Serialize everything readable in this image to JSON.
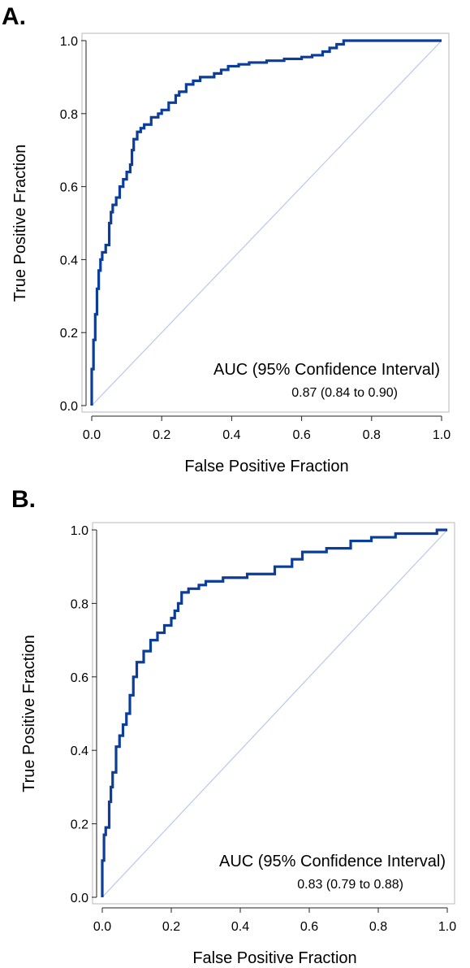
{
  "chart_data": [
    {
      "type": "line",
      "panel_label": "A.",
      "xlabel": "False Positive Fraction",
      "ylabel": "True Positive Fraction",
      "xlim": [
        0,
        1
      ],
      "ylim": [
        0,
        1
      ],
      "x_ticks": [
        "0.0",
        "0.2",
        "0.4",
        "0.6",
        "0.8",
        "1.0"
      ],
      "y_ticks": [
        "0.0",
        "0.2",
        "0.4",
        "0.6",
        "0.8",
        "1.0"
      ],
      "annotation": {
        "title": "AUC (95% Confidence Interval)",
        "value": "0.87 (0.84 to 0.90)"
      },
      "grid": false,
      "series": [
        {
          "color": "#0b3d9a",
          "x": [
            0.0,
            0.0,
            0.005,
            0.005,
            0.01,
            0.01,
            0.015,
            0.015,
            0.02,
            0.02,
            0.025,
            0.025,
            0.03,
            0.03,
            0.04,
            0.04,
            0.05,
            0.05,
            0.055,
            0.055,
            0.06,
            0.06,
            0.07,
            0.07,
            0.08,
            0.08,
            0.09,
            0.09,
            0.1,
            0.1,
            0.11,
            0.11,
            0.115,
            0.115,
            0.12,
            0.12,
            0.13,
            0.13,
            0.14,
            0.14,
            0.15,
            0.15,
            0.17,
            0.17,
            0.19,
            0.19,
            0.2,
            0.2,
            0.22,
            0.22,
            0.24,
            0.24,
            0.25,
            0.25,
            0.27,
            0.27,
            0.29,
            0.29,
            0.31,
            0.31,
            0.35,
            0.35,
            0.37,
            0.37,
            0.39,
            0.39,
            0.42,
            0.42,
            0.45,
            0.45,
            0.5,
            0.5,
            0.55,
            0.55,
            0.6,
            0.6,
            0.63,
            0.63,
            0.66,
            0.66,
            0.68,
            0.68,
            0.7,
            0.7,
            0.72,
            0.72,
            0.75,
            0.75,
            0.8,
            0.8,
            1.0
          ],
          "y": [
            0.0,
            0.1,
            0.1,
            0.18,
            0.18,
            0.25,
            0.25,
            0.32,
            0.32,
            0.37,
            0.37,
            0.4,
            0.4,
            0.42,
            0.42,
            0.44,
            0.44,
            0.5,
            0.5,
            0.53,
            0.53,
            0.55,
            0.55,
            0.57,
            0.57,
            0.6,
            0.6,
            0.62,
            0.62,
            0.64,
            0.64,
            0.66,
            0.66,
            0.7,
            0.7,
            0.73,
            0.73,
            0.75,
            0.75,
            0.76,
            0.76,
            0.77,
            0.77,
            0.79,
            0.79,
            0.8,
            0.8,
            0.81,
            0.81,
            0.83,
            0.83,
            0.85,
            0.85,
            0.86,
            0.86,
            0.88,
            0.88,
            0.89,
            0.89,
            0.9,
            0.9,
            0.91,
            0.91,
            0.92,
            0.92,
            0.93,
            0.93,
            0.935,
            0.935,
            0.94,
            0.94,
            0.945,
            0.945,
            0.95,
            0.95,
            0.955,
            0.955,
            0.96,
            0.96,
            0.97,
            0.97,
            0.98,
            0.98,
            0.99,
            0.99,
            1.0,
            1.0,
            1.0,
            1.0,
            1.0,
            1.0
          ]
        }
      ]
    },
    {
      "type": "line",
      "panel_label": "B.",
      "xlabel": "False Positive Fraction",
      "ylabel": "True Positive Fraction",
      "xlim": [
        0,
        1
      ],
      "ylim": [
        0,
        1
      ],
      "x_ticks": [
        "0.0",
        "0.2",
        "0.4",
        "0.6",
        "0.8",
        "1.0"
      ],
      "y_ticks": [
        "0.0",
        "0.2",
        "0.4",
        "0.6",
        "0.8",
        "1.0"
      ],
      "annotation": {
        "title": "AUC (95% Confidence Interval)",
        "value": "0.83 (0.79 to 0.88)"
      },
      "grid": false,
      "series": [
        {
          "color": "#0b3d9a",
          "x": [
            0.0,
            0.0,
            0.005,
            0.005,
            0.01,
            0.01,
            0.02,
            0.02,
            0.025,
            0.025,
            0.03,
            0.03,
            0.04,
            0.04,
            0.05,
            0.05,
            0.06,
            0.06,
            0.07,
            0.07,
            0.08,
            0.08,
            0.09,
            0.09,
            0.1,
            0.1,
            0.12,
            0.12,
            0.14,
            0.14,
            0.16,
            0.16,
            0.18,
            0.18,
            0.2,
            0.2,
            0.21,
            0.21,
            0.22,
            0.22,
            0.23,
            0.23,
            0.25,
            0.25,
            0.28,
            0.28,
            0.3,
            0.3,
            0.35,
            0.35,
            0.42,
            0.42,
            0.5,
            0.5,
            0.55,
            0.55,
            0.58,
            0.58,
            0.65,
            0.65,
            0.72,
            0.72,
            0.78,
            0.78,
            0.85,
            0.85,
            0.97,
            0.97,
            1.0
          ],
          "y": [
            0.0,
            0.1,
            0.1,
            0.17,
            0.17,
            0.19,
            0.19,
            0.26,
            0.26,
            0.3,
            0.3,
            0.34,
            0.34,
            0.41,
            0.41,
            0.44,
            0.44,
            0.47,
            0.47,
            0.5,
            0.5,
            0.55,
            0.55,
            0.6,
            0.6,
            0.64,
            0.64,
            0.67,
            0.67,
            0.7,
            0.7,
            0.72,
            0.72,
            0.74,
            0.74,
            0.76,
            0.76,
            0.78,
            0.78,
            0.8,
            0.8,
            0.83,
            0.83,
            0.84,
            0.84,
            0.85,
            0.85,
            0.86,
            0.86,
            0.87,
            0.87,
            0.88,
            0.88,
            0.9,
            0.9,
            0.92,
            0.92,
            0.94,
            0.94,
            0.95,
            0.95,
            0.97,
            0.97,
            0.98,
            0.98,
            0.99,
            0.99,
            1.0,
            1.0
          ]
        }
      ]
    }
  ],
  "colors": {
    "roc_curve": "#0b3d9a",
    "reference_line": "#b9c7ea",
    "frame": "#b8b8b8"
  }
}
